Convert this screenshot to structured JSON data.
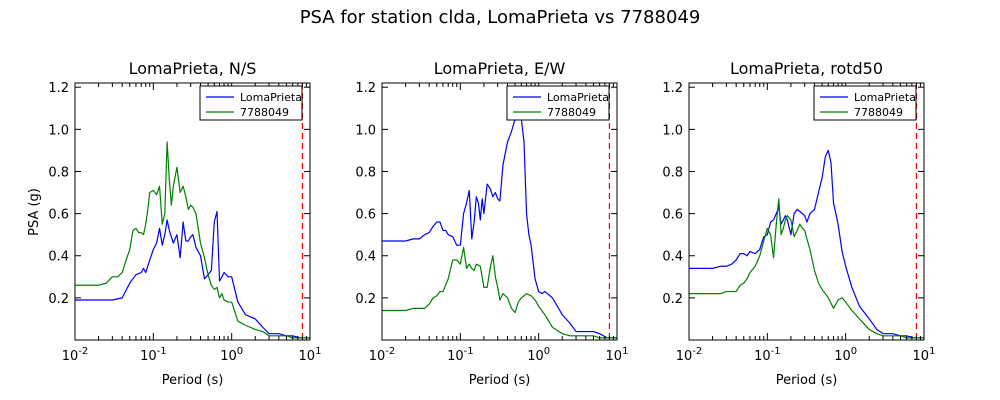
{
  "figure": {
    "suptitle": "PSA for station clda, LomaPrieta vs 7788049",
    "ylabel": "PSA (g)",
    "xlabel": "Period (s)"
  },
  "colors": {
    "series1": "#0000ff",
    "series2": "#008000",
    "cutoff": "#ff0000"
  },
  "chart_data": [
    {
      "type": "line",
      "title": "LomaPrieta, N/S",
      "xlabel": "Period (s)",
      "ylabel": "PSA (g)",
      "xscale": "log",
      "xlim": [
        0.01,
        10
      ],
      "ylim": [
        0.0,
        1.22
      ],
      "yticks": [
        0.2,
        0.4,
        0.6,
        0.8,
        1.0,
        1.2
      ],
      "xticks": [
        {
          "v": 0.01,
          "base": "10",
          "exp": "-2"
        },
        {
          "v": 0.1,
          "base": "10",
          "exp": "-1"
        },
        {
          "v": 1,
          "base": "10",
          "exp": "0"
        },
        {
          "v": 10,
          "base": "10",
          "exp": "1"
        }
      ],
      "legend_position": "top-right",
      "cutoff_period": 8.0,
      "series": [
        {
          "name": "LomaPrieta",
          "color": "#0000ff",
          "x": [
            0.01,
            0.015,
            0.02,
            0.03,
            0.04,
            0.05,
            0.06,
            0.07,
            0.075,
            0.08,
            0.09,
            0.1,
            0.11,
            0.12,
            0.13,
            0.14,
            0.15,
            0.16,
            0.18,
            0.2,
            0.22,
            0.24,
            0.26,
            0.28,
            0.3,
            0.32,
            0.35,
            0.4,
            0.45,
            0.5,
            0.55,
            0.6,
            0.65,
            0.7,
            0.75,
            0.8,
            0.9,
            1.0,
            1.2,
            1.5,
            2.0,
            2.5,
            3.0,
            4.0,
            5.0,
            6.0,
            7.5,
            10.0
          ],
          "y": [
            0.19,
            0.19,
            0.19,
            0.19,
            0.2,
            0.27,
            0.31,
            0.32,
            0.34,
            0.32,
            0.38,
            0.43,
            0.46,
            0.53,
            0.45,
            0.5,
            0.57,
            0.52,
            0.46,
            0.5,
            0.39,
            0.56,
            0.47,
            0.47,
            0.49,
            0.5,
            0.44,
            0.4,
            0.29,
            0.31,
            0.33,
            0.56,
            0.61,
            0.28,
            0.3,
            0.32,
            0.3,
            0.3,
            0.18,
            0.12,
            0.1,
            0.06,
            0.03,
            0.03,
            0.02,
            0.02,
            0.01,
            0.01
          ]
        },
        {
          "name": "7788049",
          "color": "#008000",
          "x": [
            0.01,
            0.015,
            0.02,
            0.025,
            0.03,
            0.035,
            0.04,
            0.045,
            0.05,
            0.055,
            0.06,
            0.065,
            0.07,
            0.075,
            0.08,
            0.085,
            0.09,
            0.1,
            0.11,
            0.12,
            0.13,
            0.14,
            0.15,
            0.16,
            0.17,
            0.18,
            0.2,
            0.22,
            0.24,
            0.26,
            0.28,
            0.3,
            0.32,
            0.35,
            0.4,
            0.45,
            0.5,
            0.55,
            0.6,
            0.65,
            0.7,
            0.75,
            0.8,
            0.9,
            1.0,
            1.2,
            1.5,
            2.0,
            2.5,
            3.0,
            4.0,
            5.0,
            6.0,
            7.5,
            10.0
          ],
          "y": [
            0.26,
            0.26,
            0.26,
            0.27,
            0.3,
            0.3,
            0.32,
            0.38,
            0.43,
            0.52,
            0.53,
            0.51,
            0.51,
            0.5,
            0.55,
            0.62,
            0.7,
            0.71,
            0.69,
            0.73,
            0.55,
            0.6,
            0.94,
            0.76,
            0.64,
            0.73,
            0.82,
            0.7,
            0.73,
            0.68,
            0.62,
            0.64,
            0.63,
            0.6,
            0.46,
            0.39,
            0.31,
            0.26,
            0.24,
            0.25,
            0.2,
            0.22,
            0.19,
            0.18,
            0.18,
            0.09,
            0.07,
            0.05,
            0.04,
            0.02,
            0.02,
            0.02,
            0.01,
            0.01,
            0.01
          ]
        }
      ]
    },
    {
      "type": "line",
      "title": "LomaPrieta, E/W",
      "xlabel": "Period (s)",
      "xscale": "log",
      "xlim": [
        0.01,
        10
      ],
      "ylim": [
        0.0,
        1.22
      ],
      "yticks": [
        0.2,
        0.4,
        0.6,
        0.8,
        1.0,
        1.2
      ],
      "xticks": [
        {
          "v": 0.01,
          "base": "10",
          "exp": "-2"
        },
        {
          "v": 0.1,
          "base": "10",
          "exp": "-1"
        },
        {
          "v": 1,
          "base": "10",
          "exp": "0"
        },
        {
          "v": 10,
          "base": "10",
          "exp": "1"
        }
      ],
      "legend_position": "top-right",
      "cutoff_period": 8.0,
      "series": [
        {
          "name": "LomaPrieta",
          "color": "#0000ff",
          "x": [
            0.01,
            0.015,
            0.02,
            0.025,
            0.03,
            0.035,
            0.04,
            0.045,
            0.05,
            0.055,
            0.06,
            0.065,
            0.07,
            0.08,
            0.09,
            0.1,
            0.11,
            0.12,
            0.13,
            0.14,
            0.15,
            0.16,
            0.17,
            0.18,
            0.19,
            0.2,
            0.22,
            0.24,
            0.26,
            0.28,
            0.3,
            0.32,
            0.35,
            0.4,
            0.45,
            0.5,
            0.55,
            0.6,
            0.65,
            0.7,
            0.75,
            0.8,
            0.9,
            1.0,
            1.1,
            1.2,
            1.5,
            2.0,
            2.5,
            3.0,
            4.0,
            5.0,
            6.0,
            7.5,
            10.0
          ],
          "y": [
            0.47,
            0.47,
            0.47,
            0.48,
            0.48,
            0.5,
            0.51,
            0.54,
            0.56,
            0.56,
            0.52,
            0.52,
            0.5,
            0.49,
            0.45,
            0.45,
            0.6,
            0.65,
            0.71,
            0.48,
            0.56,
            0.68,
            0.65,
            0.57,
            0.67,
            0.6,
            0.74,
            0.72,
            0.68,
            0.7,
            0.67,
            0.66,
            0.83,
            0.94,
            0.99,
            1.05,
            1.13,
            1.05,
            0.94,
            0.6,
            0.5,
            0.45,
            0.29,
            0.23,
            0.22,
            0.23,
            0.2,
            0.12,
            0.08,
            0.04,
            0.04,
            0.04,
            0.03,
            0.01,
            0.01
          ]
        },
        {
          "name": "7788049",
          "color": "#008000",
          "x": [
            0.01,
            0.015,
            0.02,
            0.025,
            0.03,
            0.035,
            0.04,
            0.045,
            0.05,
            0.055,
            0.06,
            0.07,
            0.08,
            0.09,
            0.1,
            0.11,
            0.12,
            0.13,
            0.14,
            0.15,
            0.16,
            0.18,
            0.2,
            0.22,
            0.24,
            0.26,
            0.28,
            0.3,
            0.32,
            0.35,
            0.4,
            0.45,
            0.5,
            0.55,
            0.6,
            0.7,
            0.8,
            0.9,
            1.0,
            1.2,
            1.5,
            2.0,
            2.5,
            3.0,
            4.0,
            5.0,
            6.0,
            7.5,
            10.0
          ],
          "y": [
            0.14,
            0.14,
            0.14,
            0.15,
            0.15,
            0.15,
            0.17,
            0.2,
            0.21,
            0.23,
            0.23,
            0.29,
            0.38,
            0.38,
            0.36,
            0.44,
            0.34,
            0.36,
            0.34,
            0.33,
            0.36,
            0.35,
            0.25,
            0.25,
            0.34,
            0.4,
            0.3,
            0.25,
            0.19,
            0.22,
            0.2,
            0.15,
            0.13,
            0.18,
            0.2,
            0.22,
            0.21,
            0.19,
            0.16,
            0.12,
            0.06,
            0.03,
            0.02,
            0.02,
            0.02,
            0.02,
            0.01,
            0.01,
            0.01
          ]
        }
      ]
    },
    {
      "type": "line",
      "title": "LomaPrieta, rotd50",
      "xlabel": "Period (s)",
      "xscale": "log",
      "xlim": [
        0.01,
        10
      ],
      "ylim": [
        0.0,
        1.22
      ],
      "yticks": [
        0.2,
        0.4,
        0.6,
        0.8,
        1.0,
        1.2
      ],
      "xticks": [
        {
          "v": 0.01,
          "base": "10",
          "exp": "-2"
        },
        {
          "v": 0.1,
          "base": "10",
          "exp": "-1"
        },
        {
          "v": 1,
          "base": "10",
          "exp": "0"
        },
        {
          "v": 10,
          "base": "10",
          "exp": "1"
        }
      ],
      "legend_position": "top-right",
      "cutoff_period": 8.0,
      "series": [
        {
          "name": "LomaPrieta",
          "color": "#0000ff",
          "x": [
            0.01,
            0.015,
            0.02,
            0.025,
            0.03,
            0.035,
            0.04,
            0.045,
            0.05,
            0.055,
            0.06,
            0.07,
            0.08,
            0.09,
            0.1,
            0.11,
            0.12,
            0.13,
            0.14,
            0.15,
            0.16,
            0.17,
            0.18,
            0.2,
            0.22,
            0.24,
            0.26,
            0.28,
            0.3,
            0.32,
            0.35,
            0.4,
            0.45,
            0.5,
            0.55,
            0.6,
            0.65,
            0.7,
            0.75,
            0.8,
            0.9,
            1.0,
            1.2,
            1.5,
            2.0,
            2.5,
            3.0,
            4.0,
            5.0,
            6.0,
            7.5,
            10.0
          ],
          "y": [
            0.34,
            0.34,
            0.34,
            0.35,
            0.35,
            0.36,
            0.38,
            0.41,
            0.41,
            0.4,
            0.42,
            0.41,
            0.43,
            0.49,
            0.5,
            0.56,
            0.57,
            0.6,
            0.63,
            0.55,
            0.57,
            0.59,
            0.57,
            0.5,
            0.6,
            0.62,
            0.61,
            0.6,
            0.59,
            0.56,
            0.6,
            0.62,
            0.7,
            0.77,
            0.87,
            0.9,
            0.84,
            0.65,
            0.6,
            0.55,
            0.42,
            0.35,
            0.25,
            0.16,
            0.1,
            0.05,
            0.03,
            0.03,
            0.02,
            0.02,
            0.01,
            0.01
          ]
        },
        {
          "name": "7788049",
          "color": "#008000",
          "x": [
            0.01,
            0.015,
            0.02,
            0.025,
            0.03,
            0.035,
            0.04,
            0.045,
            0.05,
            0.055,
            0.06,
            0.07,
            0.08,
            0.09,
            0.1,
            0.11,
            0.12,
            0.13,
            0.14,
            0.15,
            0.16,
            0.17,
            0.18,
            0.2,
            0.22,
            0.24,
            0.26,
            0.28,
            0.3,
            0.32,
            0.35,
            0.4,
            0.45,
            0.5,
            0.55,
            0.6,
            0.7,
            0.8,
            0.9,
            1.0,
            1.2,
            1.5,
            2.0,
            2.5,
            3.0,
            4.0,
            5.0,
            6.0,
            7.5,
            10.0
          ],
          "y": [
            0.22,
            0.22,
            0.22,
            0.22,
            0.23,
            0.23,
            0.23,
            0.26,
            0.27,
            0.29,
            0.32,
            0.35,
            0.4,
            0.47,
            0.53,
            0.5,
            0.39,
            0.55,
            0.67,
            0.5,
            0.53,
            0.57,
            0.59,
            0.57,
            0.49,
            0.52,
            0.55,
            0.53,
            0.52,
            0.48,
            0.43,
            0.33,
            0.27,
            0.24,
            0.22,
            0.2,
            0.15,
            0.19,
            0.2,
            0.18,
            0.14,
            0.1,
            0.05,
            0.03,
            0.02,
            0.02,
            0.02,
            0.01,
            0.01,
            0.01
          ]
        }
      ]
    }
  ]
}
